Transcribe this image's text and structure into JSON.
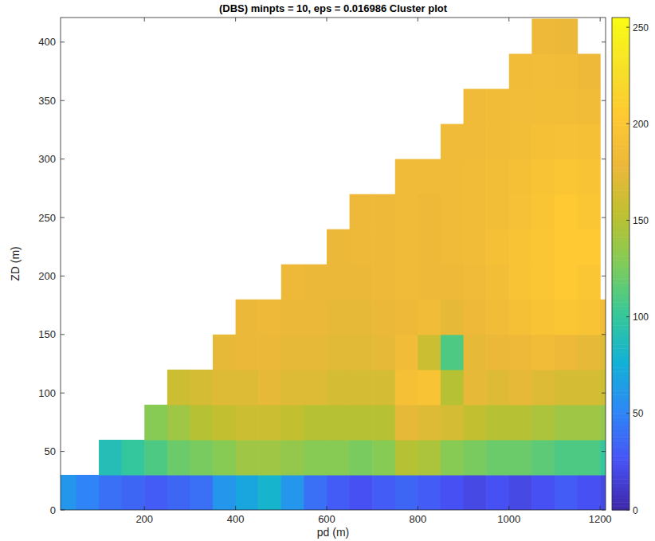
{
  "chart_data": {
    "type": "heatmap",
    "title": "(DBS) minpts = 10, eps = 0.016986 Cluster plot",
    "x_label": "pd (m)",
    "y_label": "ZD (m)",
    "xlim": [
      16,
      1212
    ],
    "ylim": [
      0,
      421
    ],
    "xticks": [
      200,
      400,
      600,
      800,
      1000,
      1200
    ],
    "yticks": [
      0,
      50,
      100,
      150,
      200,
      250,
      300,
      350,
      400
    ],
    "grid": false,
    "x": [
      25,
      75,
      125,
      175,
      225,
      275,
      325,
      375,
      425,
      475,
      525,
      575,
      625,
      675,
      725,
      775,
      825,
      875,
      925,
      975,
      1025,
      1075,
      1125,
      1175,
      1225
    ],
    "y": [
      15,
      45,
      75,
      105,
      135,
      165,
      195,
      225,
      255,
      285,
      315,
      345,
      375,
      405
    ],
    "values": [
      [
        60,
        50,
        40,
        35,
        30,
        35,
        40,
        60,
        70,
        80,
        60,
        40,
        30,
        25,
        30,
        35,
        30,
        25,
        20,
        25,
        20,
        25,
        30,
        25,
        20
      ],
      [
        null,
        null,
        90,
        100,
        110,
        120,
        125,
        130,
        140,
        140,
        135,
        130,
        130,
        125,
        130,
        150,
        145,
        130,
        125,
        120,
        120,
        115,
        110,
        110,
        100
      ],
      [
        null,
        null,
        null,
        null,
        130,
        140,
        150,
        155,
        160,
        160,
        155,
        150,
        150,
        150,
        150,
        175,
        170,
        165,
        155,
        150,
        150,
        145,
        140,
        140,
        135
      ],
      [
        null,
        null,
        null,
        null,
        null,
        160,
        165,
        170,
        170,
        175,
        170,
        170,
        165,
        165,
        165,
        190,
        195,
        150,
        175,
        170,
        175,
        170,
        165,
        165,
        160
      ],
      [
        null,
        null,
        null,
        null,
        null,
        null,
        null,
        175,
        178,
        178,
        175,
        175,
        172,
        172,
        175,
        185,
        160,
        110,
        175,
        178,
        180,
        185,
        180,
        175,
        170
      ],
      [
        null,
        null,
        null,
        null,
        null,
        null,
        null,
        null,
        178,
        180,
        178,
        178,
        175,
        175,
        178,
        180,
        185,
        175,
        180,
        185,
        190,
        195,
        200,
        195,
        185
      ],
      [
        null,
        null,
        null,
        null,
        null,
        null,
        null,
        null,
        null,
        null,
        180,
        178,
        178,
        178,
        180,
        182,
        180,
        180,
        182,
        188,
        195,
        200,
        205,
        200,
        null
      ],
      [
        null,
        null,
        null,
        null,
        null,
        null,
        null,
        null,
        null,
        null,
        null,
        null,
        178,
        180,
        180,
        182,
        180,
        182,
        185,
        190,
        195,
        200,
        205,
        205,
        null
      ],
      [
        null,
        null,
        null,
        null,
        null,
        null,
        null,
        null,
        null,
        null,
        null,
        null,
        null,
        180,
        180,
        182,
        180,
        182,
        185,
        188,
        192,
        198,
        205,
        200,
        null
      ],
      [
        null,
        null,
        null,
        null,
        null,
        null,
        null,
        null,
        null,
        null,
        null,
        null,
        null,
        null,
        null,
        182,
        182,
        182,
        185,
        188,
        190,
        195,
        200,
        195,
        null
      ],
      [
        null,
        null,
        null,
        null,
        null,
        null,
        null,
        null,
        null,
        null,
        null,
        null,
        null,
        null,
        null,
        null,
        null,
        182,
        183,
        185,
        188,
        190,
        192,
        190,
        null
      ],
      [
        null,
        null,
        null,
        null,
        null,
        null,
        null,
        null,
        null,
        null,
        null,
        null,
        null,
        null,
        null,
        null,
        null,
        null,
        183,
        185,
        186,
        188,
        188,
        185,
        null
      ],
      [
        null,
        null,
        null,
        null,
        null,
        null,
        null,
        null,
        null,
        null,
        null,
        null,
        null,
        null,
        null,
        null,
        null,
        null,
        null,
        null,
        185,
        186,
        185,
        180,
        null
      ],
      [
        null,
        null,
        null,
        null,
        null,
        null,
        null,
        null,
        null,
        null,
        null,
        null,
        null,
        null,
        null,
        null,
        null,
        null,
        null,
        null,
        null,
        180,
        178,
        null,
        null
      ]
    ],
    "clim": [
      0,
      255
    ],
    "cticks": [
      0,
      50,
      100,
      150,
      200,
      250
    ]
  }
}
